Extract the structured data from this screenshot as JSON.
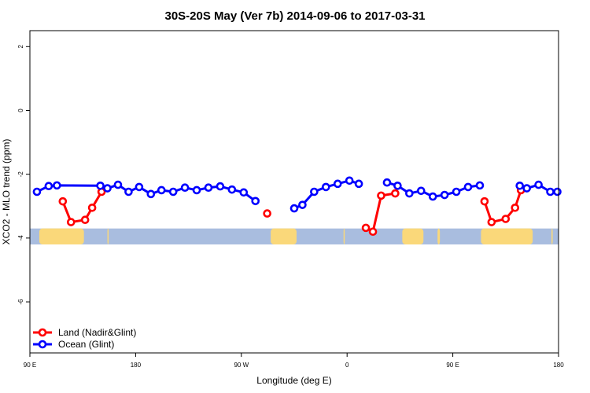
{
  "chart_data": {
    "type": "line",
    "title": "30S-20S May (Ver 7b)   2014-09-06 to 2017-03-31",
    "xlabel": "Longitude (deg E)",
    "ylabel": "XCO2 - MLO trend (ppm)",
    "xlim": [
      90,
      540
    ],
    "ylim": [
      -7.6,
      2.5
    ],
    "x_ticks": [
      {
        "value": 90,
        "label": "90 E"
      },
      {
        "value": 180,
        "label": "180"
      },
      {
        "value": 270,
        "label": "90 W"
      },
      {
        "value": 360,
        "label": "0"
      },
      {
        "value": 450,
        "label": "90 E"
      },
      {
        "value": 540,
        "label": "180"
      }
    ],
    "y_ticks": [
      {
        "value": 2,
        "label": "2"
      },
      {
        "value": 0,
        "label": "0"
      },
      {
        "value": -2,
        "label": "-2"
      },
      {
        "value": -4,
        "label": "-4"
      },
      {
        "value": -6,
        "label": "-6"
      }
    ],
    "map_band": {
      "y_top": -3.7,
      "y_bottom": -4.2,
      "ocean_color": "#a9bddf",
      "land_color": "#fad87a",
      "land_segments": [
        [
          98,
          136
        ],
        [
          156,
          157
        ],
        [
          295,
          317
        ],
        [
          357,
          358
        ],
        [
          407,
          425
        ],
        [
          437,
          439
        ],
        [
          474,
          518
        ],
        [
          534,
          535
        ]
      ]
    },
    "series": [
      {
        "name": "Land (Nadir&Glint)",
        "color": "#ff0000",
        "segments": [
          [
            [
              118,
              -2.85
            ],
            [
              125,
              -3.5
            ],
            [
              137,
              -3.43
            ],
            [
              143,
              -3.05
            ],
            [
              151,
              -2.55
            ]
          ],
          [
            [
              292,
              -3.23
            ]
          ],
          [
            [
              376,
              -3.68
            ],
            [
              382,
              -3.8
            ],
            [
              389,
              -2.67
            ],
            [
              401,
              -2.6
            ]
          ],
          [
            [
              477,
              -2.85
            ],
            [
              483,
              -3.5
            ],
            [
              495,
              -3.4
            ],
            [
              503,
              -3.05
            ],
            [
              508,
              -2.5
            ]
          ]
        ]
      },
      {
        "name": "Ocean (Glint)",
        "color": "#0000ff",
        "segments": [
          [
            [
              96,
              -2.55
            ],
            [
              106,
              -2.37
            ],
            [
              113,
              -2.35
            ],
            [
              150,
              -2.36
            ],
            [
              156,
              -2.44
            ],
            [
              165,
              -2.33
            ],
            [
              174,
              -2.55
            ],
            [
              183,
              -2.4
            ],
            [
              193,
              -2.62
            ],
            [
              202,
              -2.5
            ],
            [
              212,
              -2.55
            ],
            [
              222,
              -2.42
            ],
            [
              232,
              -2.5
            ],
            [
              242,
              -2.42
            ],
            [
              252,
              -2.38
            ],
            [
              262,
              -2.48
            ],
            [
              272,
              -2.57
            ],
            [
              282,
              -2.84
            ]
          ],
          [
            [
              315,
              -3.07
            ],
            [
              322,
              -2.96
            ],
            [
              332,
              -2.55
            ],
            [
              342,
              -2.4
            ],
            [
              352,
              -2.3
            ],
            [
              362,
              -2.2
            ],
            [
              370,
              -2.3
            ]
          ],
          [
            [
              394,
              -2.26
            ],
            [
              403,
              -2.36
            ],
            [
              413,
              -2.6
            ],
            [
              423,
              -2.52
            ],
            [
              433,
              -2.7
            ],
            [
              443,
              -2.65
            ],
            [
              453,
              -2.55
            ],
            [
              463,
              -2.4
            ],
            [
              473,
              -2.35
            ]
          ],
          [
            [
              507,
              -2.36
            ],
            [
              513,
              -2.44
            ],
            [
              523,
              -2.33
            ],
            [
              533,
              -2.55
            ],
            [
              539,
              -2.55
            ]
          ]
        ]
      }
    ],
    "legend_position": "bottom-left"
  }
}
